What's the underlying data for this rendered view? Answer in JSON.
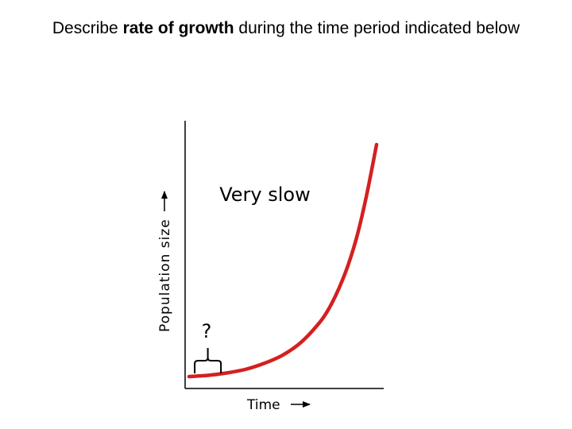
{
  "heading": {
    "before": "Describe ",
    "bold": "rate of growth",
    "after": " during the time period indicated below"
  },
  "chart_data": {
    "type": "line",
    "title": "",
    "xlabel": "Time",
    "ylabel": "Population size",
    "xlim": [
      0,
      1
    ],
    "ylim": [
      0,
      1
    ],
    "grid": false,
    "legend": "none",
    "series": [
      {
        "name": "",
        "color": "#d42020",
        "x": [
          0,
          0.1,
          0.2,
          0.3,
          0.4,
          0.5,
          0.6,
          0.7,
          0.75,
          0.8,
          0.85,
          0.9,
          0.95,
          1.0
        ],
        "y": [
          0.01,
          0.015,
          0.025,
          0.04,
          0.065,
          0.1,
          0.155,
          0.24,
          0.3,
          0.38,
          0.48,
          0.61,
          0.78,
          0.98
        ]
      }
    ],
    "annotations": [
      {
        "text": "Very slow",
        "x": 0.45,
        "y": 0.77
      },
      {
        "text": "?",
        "x": 0.1,
        "y": 0.2
      }
    ],
    "highlight_range": {
      "x": [
        0.03,
        0.17
      ]
    }
  }
}
